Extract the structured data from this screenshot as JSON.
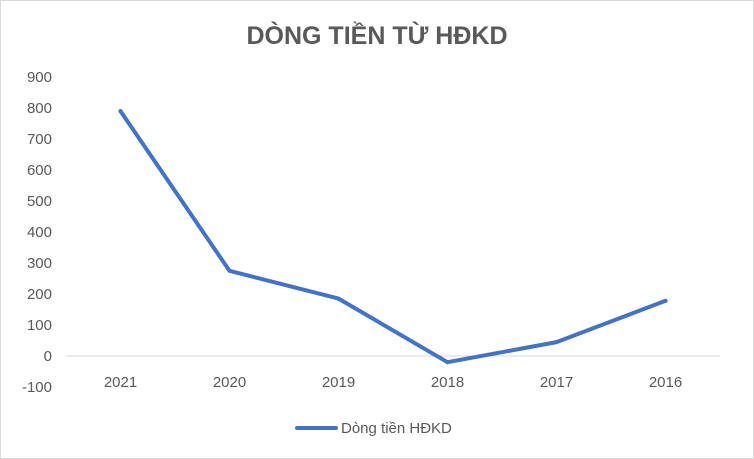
{
  "chart_data": {
    "type": "line",
    "title": "DÒNG TIỀN TỪ HĐKD",
    "xlabel": "",
    "ylabel": "",
    "categories": [
      "2021",
      "2020",
      "2019",
      "2018",
      "2017",
      "2016"
    ],
    "series": [
      {
        "name": "Dòng tiền HĐKD",
        "values": [
          790,
          275,
          185,
          -20,
          45,
          178
        ],
        "color": "#4472c4"
      }
    ],
    "ylim": [
      -100,
      900
    ],
    "yticks": [
      -100,
      0,
      100,
      200,
      300,
      400,
      500,
      600,
      700,
      800,
      900
    ],
    "grid": false,
    "legend_position": "bottom"
  }
}
